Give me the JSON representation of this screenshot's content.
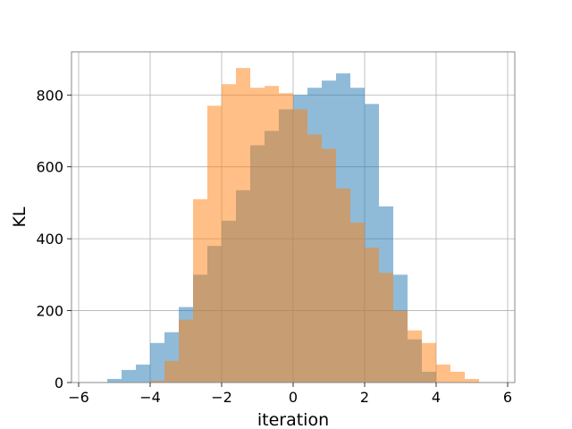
{
  "chart_data": {
    "type": "histogram",
    "xlabel": "iteration",
    "ylabel": "KL",
    "xlim": [
      -6.2,
      6.2
    ],
    "ylim": [
      0,
      920
    ],
    "x_ticks": [
      -6,
      -4,
      -2,
      0,
      2,
      4,
      6
    ],
    "x_tick_labels": [
      "−6",
      "−4",
      "−2",
      "0",
      "2",
      "4",
      "6"
    ],
    "y_ticks": [
      0,
      200,
      400,
      600,
      800
    ],
    "y_tick_labels": [
      "0",
      "200",
      "400",
      "600",
      "800"
    ],
    "grid": true,
    "series": [
      {
        "color": "#1f77b4",
        "opacity": 0.5,
        "bin_edges": [
          -5.2,
          -4.8,
          -4.4,
          -4.0,
          -3.6,
          -3.2,
          -2.8,
          -2.4,
          -2.0,
          -1.6,
          -1.2,
          -0.8,
          -0.4,
          0.0,
          0.4,
          0.8,
          1.2,
          1.6,
          2.0,
          2.4,
          2.8,
          3.2,
          3.6,
          4.0
        ],
        "counts": [
          10,
          35,
          50,
          110,
          140,
          210,
          300,
          380,
          450,
          535,
          660,
          700,
          760,
          800,
          820,
          840,
          860,
          820,
          775,
          490,
          300,
          120,
          30
        ]
      },
      {
        "color": "#ff7f0e",
        "opacity": 0.5,
        "bin_edges": [
          -4.0,
          -3.6,
          -3.2,
          -2.8,
          -2.4,
          -2.0,
          -1.6,
          -1.2,
          -0.8,
          -0.4,
          0.0,
          0.4,
          0.8,
          1.2,
          1.6,
          2.0,
          2.4,
          2.8,
          3.2,
          3.6,
          4.0,
          4.4,
          4.8,
          5.2
        ],
        "counts": [
          5,
          60,
          175,
          510,
          770,
          830,
          875,
          820,
          825,
          805,
          760,
          690,
          650,
          540,
          445,
          375,
          305,
          200,
          145,
          110,
          50,
          30,
          10
        ]
      }
    ]
  }
}
